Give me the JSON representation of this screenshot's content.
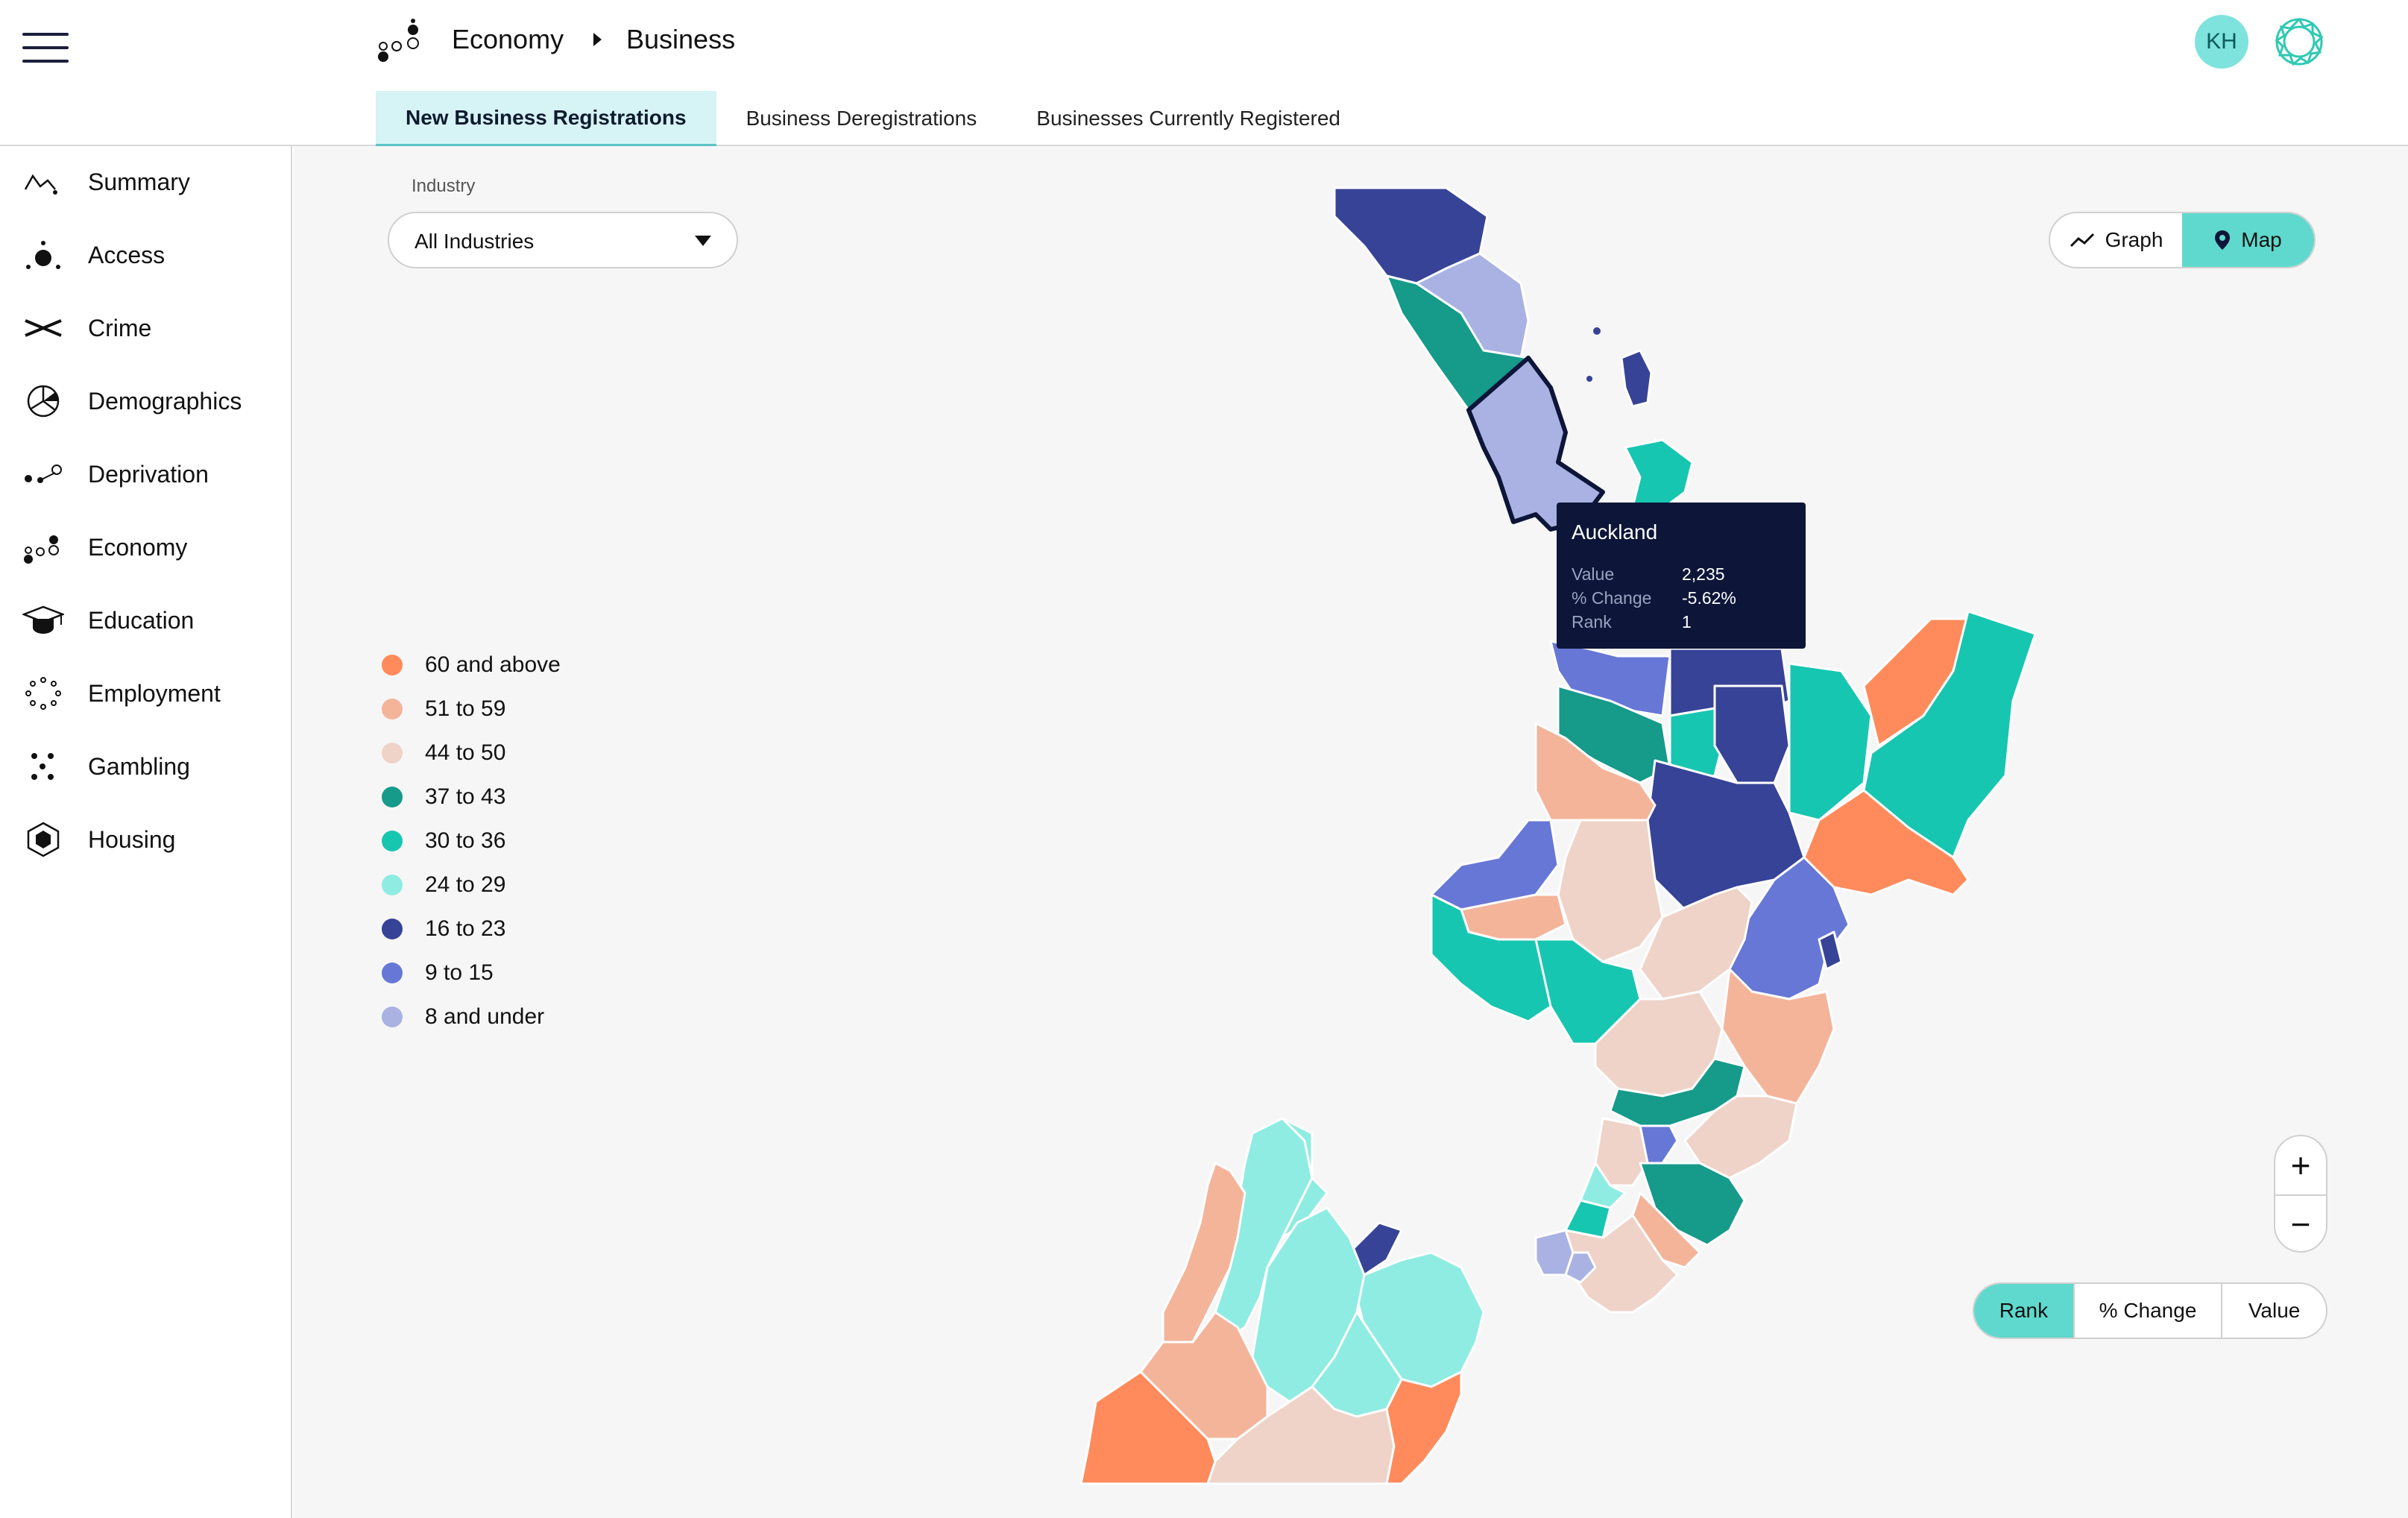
{
  "header": {
    "breadcrumb": [
      "Economy",
      "Business"
    ],
    "avatar_initials": "KH"
  },
  "tabs": [
    {
      "label": "New Business Registrations",
      "active": true
    },
    {
      "label": "Business Deregistrations",
      "active": false
    },
    {
      "label": "Businesses Currently Registered",
      "active": false
    }
  ],
  "sidebar": {
    "items": [
      {
        "label": "Summary",
        "icon": "summary-icon"
      },
      {
        "label": "Access",
        "icon": "access-icon"
      },
      {
        "label": "Crime",
        "icon": "crime-icon"
      },
      {
        "label": "Demographics",
        "icon": "demographics-icon"
      },
      {
        "label": "Deprivation",
        "icon": "deprivation-icon"
      },
      {
        "label": "Economy",
        "icon": "economy-icon"
      },
      {
        "label": "Education",
        "icon": "education-icon"
      },
      {
        "label": "Employment",
        "icon": "employment-icon"
      },
      {
        "label": "Gambling",
        "icon": "gambling-icon"
      },
      {
        "label": "Housing",
        "icon": "housing-icon"
      }
    ]
  },
  "filter": {
    "label": "Industry",
    "value": "All Industries"
  },
  "view_toggle": {
    "graph": "Graph",
    "map": "Map",
    "active": "map"
  },
  "legend": [
    {
      "label": "60 and above",
      "color": "#ff8a5b"
    },
    {
      "label": "51 to 59",
      "color": "#f4b49a"
    },
    {
      "label": "44 to 50",
      "color": "#efd3c8"
    },
    {
      "label": "37 to 43",
      "color": "#169a8a"
    },
    {
      "label": "30 to 36",
      "color": "#17c6b0"
    },
    {
      "label": "24 to 29",
      "color": "#8fece2"
    },
    {
      "label": "16 to 23",
      "color": "#374396"
    },
    {
      "label": "9 to 15",
      "color": "#6777d6"
    },
    {
      "label": "8 and under",
      "color": "#a9b2e2"
    }
  ],
  "tooltip": {
    "title": "Auckland",
    "value_label": "Value",
    "value": "2,235",
    "change_label": "% Change",
    "change": "-5.62%",
    "rank_label": "Rank",
    "rank": "1"
  },
  "zoom": {
    "in": "+",
    "out": "−"
  },
  "metric_toggle": {
    "options": [
      "Rank",
      "% Change",
      "Value"
    ],
    "active": "Rank"
  }
}
